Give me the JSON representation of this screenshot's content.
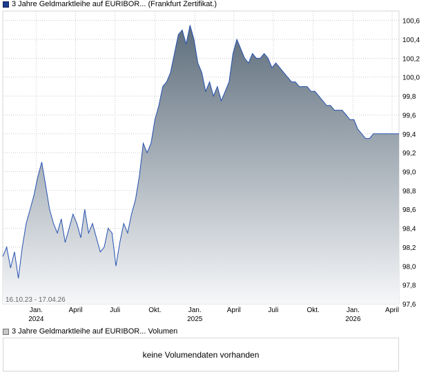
{
  "legend": {
    "price_label": "3 Jahre Geldmarktleihe auf EURIBOR... (Frankfurt Zertifikat.)",
    "volume_label": "3 Jahre Geldmarktleihe auf EURIBOR... Volumen"
  },
  "volume_panel": {
    "message": "keine Volumendaten vorhanden"
  },
  "colors": {
    "line": "#2450b0",
    "area_top": "#5e6e7c",
    "area_bottom": "#f6f7f9",
    "grid": "#c8c8c8"
  },
  "chart_data": {
    "type": "area",
    "date_range_label": "16.10.23 - 17.04.26",
    "x_range": [
      "2023-10-16",
      "2026-04-17"
    ],
    "ylim": [
      97.6,
      100.7
    ],
    "y_ticks": [
      "97,6",
      "97,8",
      "98,0",
      "98,2",
      "98,4",
      "98,6",
      "98,8",
      "99,0",
      "99,2",
      "99,4",
      "99,6",
      "99,8",
      "100,0",
      "100,2",
      "100,4",
      "100,6"
    ],
    "x_ticks": [
      {
        "date": "2024-01-01",
        "label": "Jan.",
        "year": "2024"
      },
      {
        "date": "2024-04-01",
        "label": "April",
        "year": ""
      },
      {
        "date": "2024-07-01",
        "label": "Juli",
        "year": ""
      },
      {
        "date": "2024-10-01",
        "label": "Okt.",
        "year": ""
      },
      {
        "date": "2025-01-01",
        "label": "Jan.",
        "year": "2025"
      },
      {
        "date": "2025-04-01",
        "label": "April",
        "year": ""
      },
      {
        "date": "2025-07-01",
        "label": "Juli",
        "year": ""
      },
      {
        "date": "2025-10-01",
        "label": "Okt.",
        "year": ""
      },
      {
        "date": "2026-01-01",
        "label": "Jan.",
        "year": "2026"
      },
      {
        "date": "2026-04-01",
        "label": "April",
        "year": ""
      }
    ],
    "grid": true,
    "series": [
      {
        "x": [
          "2023-10-16",
          "2023-10-25",
          "2023-11-03",
          "2023-11-12",
          "2023-11-21",
          "2023-11-30",
          "2023-12-09",
          "2023-12-18",
          "2023-12-27",
          "2024-01-05",
          "2024-01-14",
          "2024-01-23",
          "2024-02-01",
          "2024-02-10",
          "2024-02-19",
          "2024-02-28",
          "2024-03-08",
          "2024-03-17",
          "2024-03-26",
          "2024-04-04",
          "2024-04-13",
          "2024-04-22",
          "2024-05-01",
          "2024-05-10",
          "2024-05-19",
          "2024-05-28",
          "2024-06-06",
          "2024-06-15",
          "2024-06-24",
          "2024-07-03",
          "2024-07-12",
          "2024-07-21",
          "2024-07-30",
          "2024-08-08",
          "2024-08-17",
          "2024-08-26",
          "2024-09-04",
          "2024-09-13",
          "2024-09-22",
          "2024-10-01",
          "2024-10-10",
          "2024-10-19",
          "2024-10-28",
          "2024-11-06",
          "2024-11-15",
          "2024-11-24",
          "2024-12-03",
          "2024-12-12",
          "2024-12-21",
          "2024-12-30",
          "2025-01-08",
          "2025-01-17",
          "2025-01-26",
          "2025-02-04",
          "2025-02-13",
          "2025-02-22",
          "2025-03-03",
          "2025-03-12",
          "2025-03-21",
          "2025-03-30",
          "2025-04-08",
          "2025-04-17",
          "2025-04-26",
          "2025-05-05",
          "2025-05-14",
          "2025-05-23",
          "2025-06-01",
          "2025-06-10",
          "2025-06-19",
          "2025-06-28",
          "2025-07-07",
          "2025-07-16",
          "2025-07-25",
          "2025-08-03",
          "2025-08-12",
          "2025-08-21",
          "2025-08-30",
          "2025-09-08",
          "2025-09-17",
          "2025-09-26",
          "2025-10-05",
          "2025-10-14",
          "2025-10-23",
          "2025-11-01",
          "2025-11-10",
          "2025-11-19",
          "2025-11-28",
          "2025-12-07",
          "2025-12-16",
          "2025-12-25",
          "2026-01-03",
          "2026-01-12",
          "2026-01-21",
          "2026-01-30",
          "2026-02-08",
          "2026-02-17",
          "2026-02-26",
          "2026-03-07",
          "2026-03-16",
          "2026-03-25",
          "2026-04-03",
          "2026-04-12",
          "2026-04-17"
        ],
        "y": [
          98.1,
          98.2,
          97.98,
          98.15,
          97.87,
          98.2,
          98.45,
          98.6,
          98.75,
          98.95,
          99.1,
          98.85,
          98.6,
          98.45,
          98.35,
          98.5,
          98.25,
          98.4,
          98.55,
          98.45,
          98.3,
          98.6,
          98.35,
          98.45,
          98.3,
          98.15,
          98.2,
          98.4,
          98.35,
          98.0,
          98.25,
          98.45,
          98.35,
          98.55,
          98.7,
          98.95,
          99.3,
          99.2,
          99.3,
          99.55,
          99.7,
          99.9,
          99.95,
          100.05,
          100.25,
          100.45,
          100.5,
          100.35,
          100.55,
          100.4,
          100.15,
          100.05,
          99.85,
          99.95,
          99.8,
          99.9,
          99.75,
          99.85,
          99.95,
          100.25,
          100.4,
          100.3,
          100.2,
          100.15,
          100.25,
          100.2,
          100.2,
          100.25,
          100.2,
          100.1,
          100.15,
          100.1,
          100.05,
          100.0,
          99.95,
          99.95,
          99.9,
          99.9,
          99.9,
          99.85,
          99.85,
          99.8,
          99.75,
          99.7,
          99.7,
          99.65,
          99.65,
          99.65,
          99.6,
          99.55,
          99.55,
          99.45,
          99.4,
          99.35,
          99.35,
          99.4,
          99.4,
          99.4,
          99.4,
          99.4,
          99.4,
          99.4,
          99.4
        ]
      }
    ]
  }
}
